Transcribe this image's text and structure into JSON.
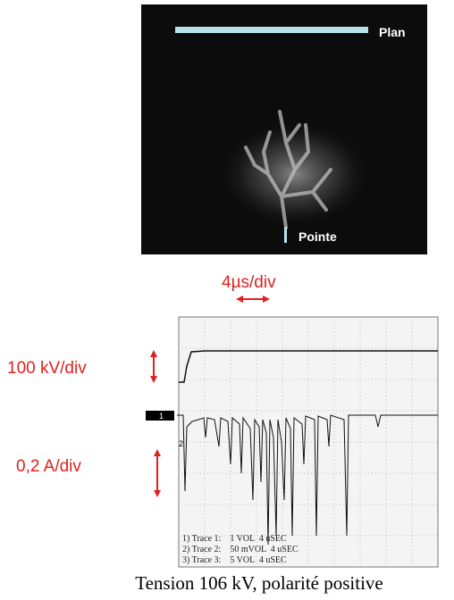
{
  "photo": {
    "top_label": "Plan",
    "bottom_label": "Pointe"
  },
  "scope": {
    "time_scale": "4µs/div",
    "voltage_scale": "100 kV/div",
    "current_scale": "0,2 A/div",
    "channel_markers": [
      "1",
      "2"
    ],
    "traces": [
      "1) Trace 1:    1 VOL  4 uSEC",
      "2) Trace 2:    50 mVOL  4 uSEC",
      "3) Trace 3:    5 VOL  4 uSEC"
    ]
  },
  "caption": "Tension 106 kV, polarité positive"
}
